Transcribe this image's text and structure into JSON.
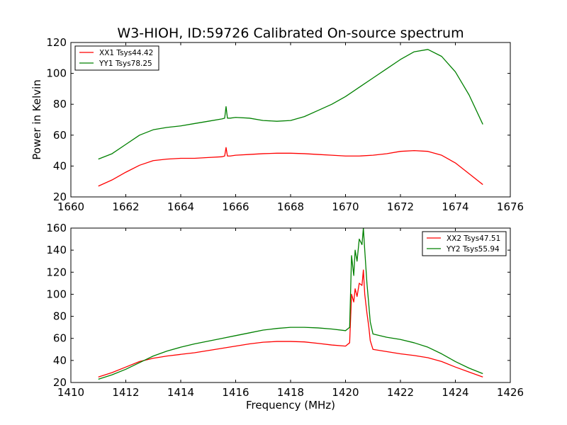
{
  "figure": {
    "title": "W3-HIOH, ID:59726 Calibrated On-source spectrum",
    "ylabel": "Power in Kelvin",
    "xlabel": "Frequency (MHz)"
  },
  "chart_data": [
    {
      "type": "line",
      "xlim": [
        1660,
        1676
      ],
      "ylim": [
        20,
        120
      ],
      "xticks": [
        "1660",
        "1662",
        "1664",
        "1666",
        "1668",
        "1670",
        "1672",
        "1674",
        "1676"
      ],
      "yticks": [
        "20",
        "40",
        "60",
        "80",
        "100",
        "120"
      ],
      "legend_position": "top-left",
      "colors": {
        "XX": "#ff0000",
        "YY": "#008000"
      },
      "series": [
        {
          "name": "XX1 Tsys44.42",
          "color": "#ff0000",
          "x": [
            1661.0,
            1661.5,
            1662.0,
            1662.5,
            1663.0,
            1663.5,
            1664.0,
            1664.5,
            1665.0,
            1665.5,
            1665.6,
            1665.65,
            1665.7,
            1665.8,
            1666.0,
            1666.5,
            1667.0,
            1667.5,
            1668.0,
            1668.5,
            1669.0,
            1669.5,
            1670.0,
            1670.5,
            1671.0,
            1671.5,
            1672.0,
            1672.5,
            1673.0,
            1673.5,
            1674.0,
            1674.5,
            1675.0
          ],
          "y": [
            27,
            31,
            36,
            40.5,
            43.5,
            44.5,
            45,
            45,
            45.5,
            46,
            46.5,
            52,
            46.5,
            46.5,
            47,
            47.5,
            48,
            48.3,
            48.3,
            48,
            47.5,
            47,
            46.5,
            46.5,
            47,
            48,
            49.5,
            50,
            49.5,
            47,
            42,
            35,
            28
          ]
        },
        {
          "name": "YY1 Tsys78.25",
          "color": "#008000",
          "x": [
            1661.0,
            1661.5,
            1662.0,
            1662.5,
            1663.0,
            1663.5,
            1664.0,
            1664.5,
            1665.0,
            1665.5,
            1665.6,
            1665.65,
            1665.7,
            1665.8,
            1666.0,
            1666.5,
            1667.0,
            1667.5,
            1668.0,
            1668.5,
            1669.0,
            1669.5,
            1670.0,
            1670.5,
            1671.0,
            1671.5,
            1672.0,
            1672.5,
            1673.0,
            1673.5,
            1674.0,
            1674.5,
            1675.0
          ],
          "y": [
            44.5,
            48,
            54,
            60,
            63.5,
            65,
            66,
            67.5,
            69,
            70.5,
            71,
            78.5,
            71,
            71,
            71.5,
            71,
            69.5,
            69,
            69.5,
            72,
            76,
            80,
            85,
            91,
            97,
            103,
            109,
            114,
            115.5,
            111,
            101,
            86,
            67
          ]
        }
      ]
    },
    {
      "type": "line",
      "xlim": [
        1410,
        1426
      ],
      "ylim": [
        20,
        160
      ],
      "xticks": [
        "1410",
        "1412",
        "1414",
        "1416",
        "1418",
        "1420",
        "1422",
        "1424",
        "1426"
      ],
      "yticks": [
        "20",
        "40",
        "60",
        "80",
        "100",
        "120",
        "140",
        "160"
      ],
      "legend_position": "top-right",
      "xlabel": "Frequency (MHz)",
      "series": [
        {
          "name": "XX2 Tsys47.51",
          "color": "#ff0000",
          "x": [
            1411.0,
            1411.5,
            1412.0,
            1412.5,
            1413.0,
            1413.5,
            1414.0,
            1414.5,
            1415.0,
            1415.5,
            1416.0,
            1416.5,
            1417.0,
            1417.5,
            1418.0,
            1418.5,
            1419.0,
            1419.5,
            1420.0,
            1420.15,
            1420.22,
            1420.3,
            1420.35,
            1420.42,
            1420.5,
            1420.6,
            1420.65,
            1420.7,
            1420.78,
            1420.85,
            1420.9,
            1421.0,
            1421.5,
            1422.0,
            1422.5,
            1423.0,
            1423.5,
            1424.0,
            1424.5,
            1425.0
          ],
          "y": [
            25,
            29,
            34,
            39,
            42,
            44,
            45.5,
            47,
            49,
            51,
            53,
            55,
            56.5,
            57.2,
            57.2,
            56.8,
            55.5,
            54,
            53,
            56,
            100,
            93,
            105,
            98,
            110,
            108,
            122,
            100,
            83,
            70,
            58,
            50,
            48,
            46,
            44.5,
            42.5,
            39,
            34,
            29.5,
            25
          ]
        },
        {
          "name": "YY2 Tsys55.94",
          "color": "#008000",
          "x": [
            1411.0,
            1411.5,
            1412.0,
            1412.5,
            1413.0,
            1413.5,
            1414.0,
            1414.5,
            1415.0,
            1415.5,
            1416.0,
            1416.5,
            1417.0,
            1417.5,
            1418.0,
            1418.5,
            1419.0,
            1419.5,
            1420.0,
            1420.15,
            1420.22,
            1420.3,
            1420.35,
            1420.42,
            1420.5,
            1420.6,
            1420.65,
            1420.7,
            1420.78,
            1420.85,
            1420.9,
            1421.0,
            1421.5,
            1422.0,
            1422.5,
            1423.0,
            1423.5,
            1424.0,
            1424.5,
            1425.0
          ],
          "y": [
            23,
            27,
            32,
            38,
            44,
            48.5,
            52,
            55,
            57.5,
            60,
            62.5,
            65,
            67.5,
            69,
            70,
            70,
            69.5,
            68.5,
            67,
            70,
            135,
            117,
            140,
            130,
            150,
            145,
            160,
            140,
            110,
            90,
            75,
            64,
            61,
            59,
            56,
            52,
            46,
            39,
            33,
            28
          ]
        }
      ]
    }
  ]
}
